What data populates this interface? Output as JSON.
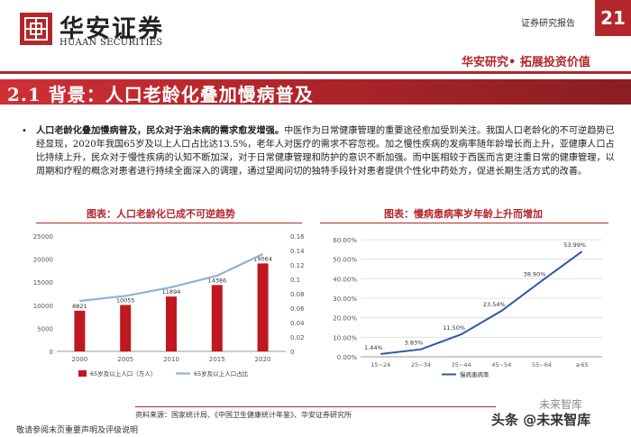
{
  "header": {
    "logo_cn": "华安证券",
    "logo_en": "HUAAN SECURITIES",
    "report_type": "证券研究报告",
    "page_number": "21",
    "slogan": "华安研究• 拓展投资价值",
    "brand_color": "#b3262b"
  },
  "section": {
    "title": "2.1 背景：人口老龄化叠加慢病普及"
  },
  "body": {
    "bullet": "•",
    "bold_lead": "人口老龄化叠加慢病普及，民众对于治未病的需求愈发增强。",
    "text": "中医作为日常健康管理的重要途径愈加受到关注。我国人口老龄化的不可逆趋势已经显现，2020年我国65岁及以上人口占比达13.5%，老年人对医疗的需求不容忽视。加之慢性疾病的发病率随年龄增长而上升，亚健康人口占比持续上升，民众对于慢性疾病的认知不断加深，对于日常健康管理和防护的意识不断加强。而中医相较于西医而言更注重日常的健康管理，以周期和疗程的概念对患者进行持续全面深入的调理，通过望闻问切的独特手段针对患者提供个性化中药处方，促进长期生活方式的改善。"
  },
  "footer": {
    "source": "资料来源：国家统计局、《中国卫生健康统计年鉴》、华安证券研究所",
    "disclaimer": "敬请参阅末页重要声明及评级说明",
    "watermark_top": "未来智库",
    "watermark_bottom": "头条 @未来智库"
  },
  "chart_data": [
    {
      "type": "bar",
      "title": "图表：人口老龄化已成不可逆趋势",
      "categories": [
        "2000",
        "2005",
        "2010",
        "2015",
        "2020"
      ],
      "series": [
        {
          "name": "65岁及以上人口（万人）",
          "type": "bar",
          "axis": "left",
          "values": [
            8821,
            10055,
            11894,
            14386,
            19064
          ],
          "color": "#c0181f"
        },
        {
          "name": "65岁及以上人口占比",
          "type": "line",
          "axis": "right",
          "values": [
            0.07,
            0.077,
            0.089,
            0.105,
            0.135
          ],
          "color": "#8eb4d4"
        }
      ],
      "data_labels": [
        "8821",
        "10055",
        "11894",
        "14386",
        "19064"
      ],
      "y_left_ticks": [
        "0",
        "5000",
        "10000",
        "15000",
        "20000",
        "25000"
      ],
      "y_right_ticks": [
        "0",
        "0.02",
        "0.04",
        "0.06",
        "0.08",
        "0.1",
        "0.12",
        "0.14",
        "0.16"
      ],
      "ylim_left": [
        0,
        25000
      ],
      "ylim_right": [
        0,
        0.16
      ],
      "legend_position": "bottom",
      "grid": false
    },
    {
      "type": "line",
      "title": "图表：慢病患病率岁年龄上升而增加",
      "categories": [
        "15~24",
        "25~34",
        "35~44",
        "45~54",
        "55~64",
        "≥65"
      ],
      "series": [
        {
          "name": "慢病患病率",
          "values": [
            1.44,
            3.83,
            11.5,
            23.54,
            38.9,
            53.99
          ],
          "color": "#2e58a6"
        }
      ],
      "data_labels": [
        "1.44%",
        "3.83%",
        "11.50%",
        "23.54%",
        "38.90%",
        "53.99%"
      ],
      "y_ticks": [
        "0.00%",
        "10.00%",
        "20.00%",
        "30.00%",
        "40.00%",
        "50.00%",
        "60.00%"
      ],
      "ylim": [
        0,
        60
      ],
      "legend_position": "bottom",
      "grid": true
    }
  ]
}
